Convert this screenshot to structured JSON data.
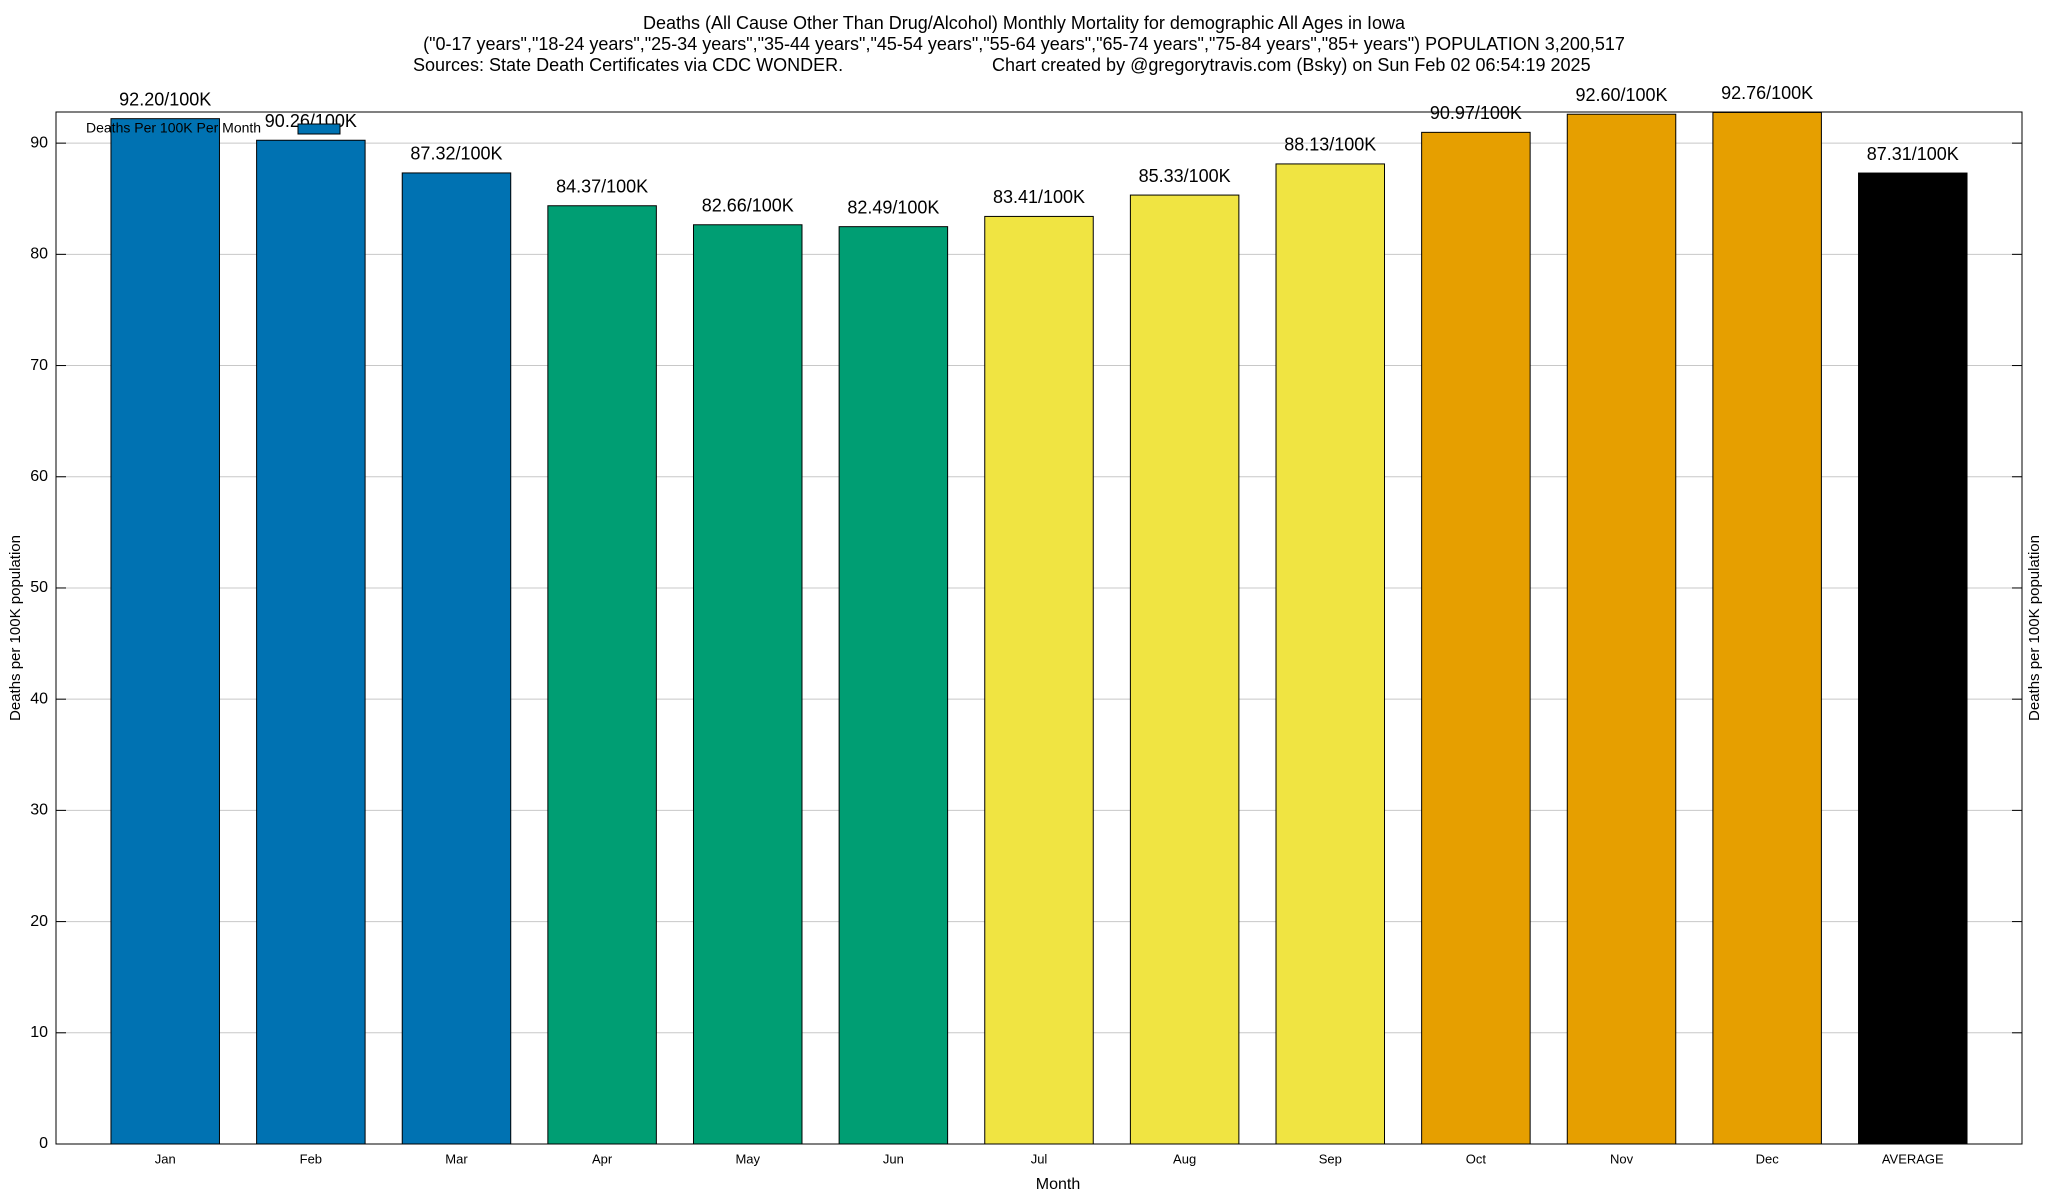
{
  "chart_data": {
    "type": "bar",
    "title": "Deaths (All Cause Other Than Drug/Alcohol) Monthly Mortality for demographic All Ages in Iowa",
    "subtitle": "(\"0-17 years\",\"18-24 years\",\"25-34 years\",\"35-44 years\",\"45-54 years\",\"55-64 years\",\"65-74 years\",\"75-84 years\",\"85+ years\") POPULATION 3,200,517",
    "source": "Sources: State Death Certificates via CDC WONDER.",
    "credit": "Chart created by @gregorytravis.com (Bsky) on Sun Feb 02 06:54:19 2025",
    "xlabel": "Month",
    "ylabel": "Deaths per 100K population",
    "categories": [
      "Jan",
      "Feb",
      "Mar",
      "Apr",
      "May",
      "Jun",
      "Jul",
      "Aug",
      "Sep",
      "Oct",
      "Nov",
      "Dec",
      "AVERAGE"
    ],
    "series": [
      {
        "name": "Deaths Per 100K Per Month",
        "color": "#0072b2",
        "values": [
          92.2,
          90.26,
          87.32,
          84.37,
          82.66,
          82.49,
          83.41,
          85.33,
          88.13,
          90.97,
          92.6,
          92.76,
          87.31
        ],
        "value_labels": [
          "92.20/100K",
          "90.26/100K",
          "87.32/100K",
          "84.37/100K",
          "82.66/100K",
          "82.49/100K",
          "83.41/100K",
          "85.33/100K",
          "88.13/100K",
          "90.97/100K",
          "92.60/100K",
          "92.76/100K",
          "87.31/100K"
        ],
        "colors": [
          "#0072b2",
          "#0072b2",
          "#0072b2",
          "#009e73",
          "#009e73",
          "#009e73",
          "#f0e442",
          "#f0e442",
          "#f0e442",
          "#e69f00",
          "#e69f00",
          "#e69f00",
          "#000000"
        ]
      }
    ],
    "ylim": [
      0,
      92.8
    ],
    "yticks": [
      0,
      10,
      20,
      30,
      40,
      50,
      60,
      70,
      80,
      90
    ],
    "grid": true,
    "legend": "upper-left"
  }
}
